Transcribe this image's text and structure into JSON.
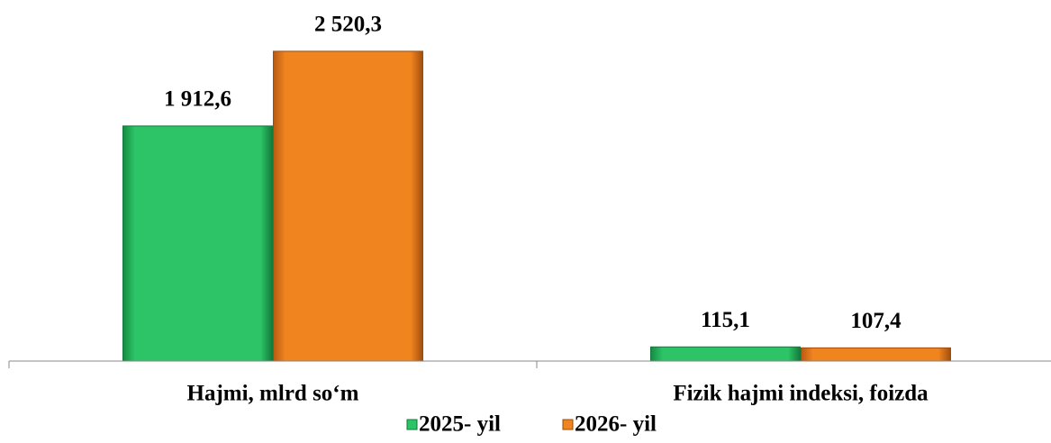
{
  "chart_data": {
    "type": "bar",
    "categories": [
      "Hajmi, mlrd so‘m",
      "Fizik hajmi indeksi, foizda"
    ],
    "series": [
      {
        "name": "2025- yil",
        "color": "#1fae55",
        "values": [
          1912.6,
          115.1
        ],
        "value_labels": [
          "1 912,6",
          "115,1"
        ]
      },
      {
        "name": "2026- yil",
        "color": "#e8771e",
        "values": [
          2520.3,
          107.4
        ],
        "value_labels": [
          "2 520,3",
          "107,4"
        ]
      }
    ],
    "ylim": [
      0,
      2700
    ],
    "legend": "bottom"
  }
}
